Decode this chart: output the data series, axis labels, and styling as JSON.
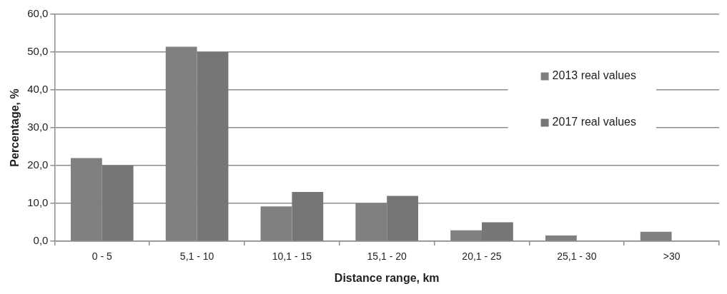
{
  "chart_data": {
    "type": "bar",
    "xlabel": "Distance range, km",
    "ylabel": "Percentage, %",
    "categories": [
      "0 - 5",
      "5,1 - 10",
      "10,1 - 15",
      "15,1 - 20",
      "20,1 - 25",
      "25,1 - 30",
      ">30"
    ],
    "series": [
      {
        "name": "2013 real values",
        "color": "#808080",
        "values": [
          22.0,
          51.4,
          9.2,
          10.0,
          2.9,
          1.5,
          2.5
        ]
      },
      {
        "name": "2017 real values",
        "color": "#767676",
        "values": [
          20.0,
          50.0,
          13.0,
          12.0,
          5.0,
          0,
          0
        ]
      }
    ],
    "ylim": [
      0,
      60
    ],
    "yticks": [
      {
        "value": 0,
        "label": "0,0"
      },
      {
        "value": 10,
        "label": "10,0"
      },
      {
        "value": 20,
        "label": "20,0"
      },
      {
        "value": 30,
        "label": "30,0"
      },
      {
        "value": 40,
        "label": "40,0"
      },
      {
        "value": 50,
        "label": "50,0"
      },
      {
        "value": 60,
        "label": "60,0"
      }
    ],
    "grid": "y",
    "legend": "right"
  }
}
